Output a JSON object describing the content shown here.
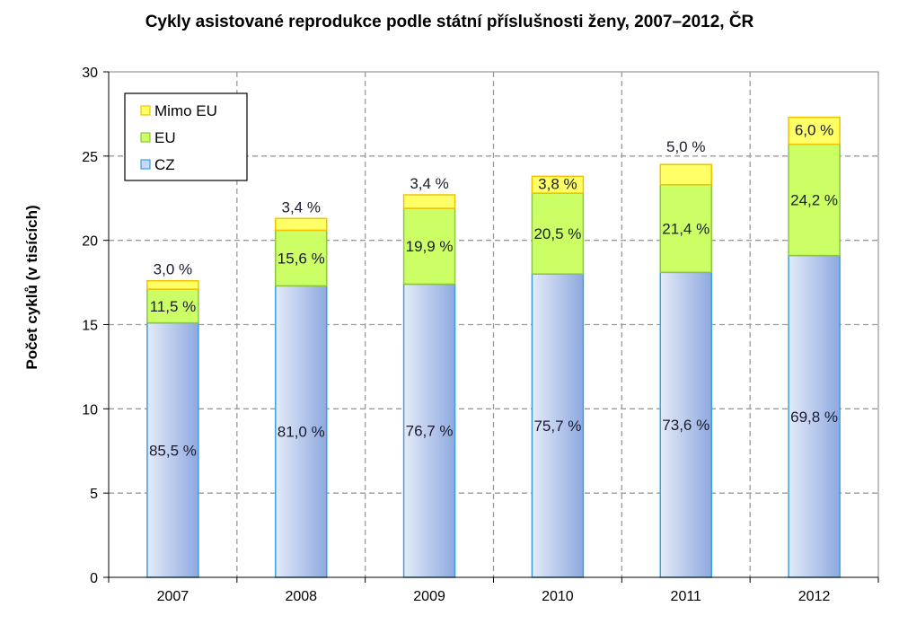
{
  "chart_data": {
    "type": "bar",
    "stacked": true,
    "title": "Cykly asistované reprodukce podle státní příslušnosti ženy, 2007–2012, ČR",
    "xlabel": "",
    "ylabel": "Počet cyklů (v tisících)",
    "ylim": [
      0,
      30
    ],
    "yticks": [
      "0",
      "5",
      "10",
      "15",
      "20",
      "25",
      "30"
    ],
    "grid": true,
    "legend_position": "top-left",
    "categories": [
      "2007",
      "2008",
      "2009",
      "2010",
      "2011",
      "2012"
    ],
    "series": [
      {
        "name": "CZ",
        "color": "#b3c6ee",
        "values": [
          15.1,
          17.3,
          17.4,
          18.0,
          18.1,
          19.1
        ],
        "labels": [
          "85,5 %",
          "81,0 %",
          "76,7 %",
          "75,7 %",
          "73,6 %",
          "69,8 %"
        ]
      },
      {
        "name": "EU",
        "color": "#ccff66",
        "values": [
          2.0,
          3.3,
          4.5,
          4.8,
          5.2,
          6.6
        ],
        "labels": [
          "11,5 %",
          "15,6 %",
          "19,9 %",
          "20,5 %",
          "21,4 %",
          "24,2 %"
        ]
      },
      {
        "name": "Mimo EU",
        "color": "#ffff66",
        "values": [
          0.5,
          0.7,
          0.8,
          1.0,
          1.2,
          1.6
        ],
        "labels": [
          "3,0 %",
          "3,4 %",
          "3,4 %",
          "3,8 %",
          "5,0 %",
          "6,0 %"
        ]
      }
    ]
  }
}
